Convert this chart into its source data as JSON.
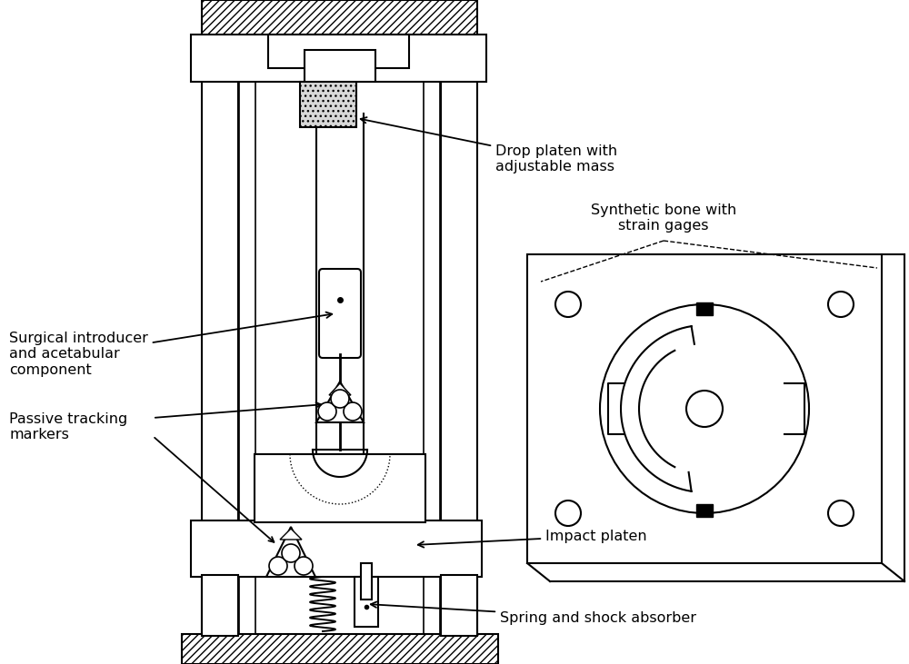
{
  "bg_color": "#ffffff",
  "line_color": "#000000",
  "labels": {
    "drop_platen": "Drop platen with\nadjustable mass",
    "surgical": "Surgical introducer\nand acetabular\ncomponent",
    "passive": "Passive tracking\nmarkers",
    "synthetic": "Synthetic bone with\nstrain gages",
    "impact": "Impact platen",
    "spring": "Spring and shock absorber"
  }
}
